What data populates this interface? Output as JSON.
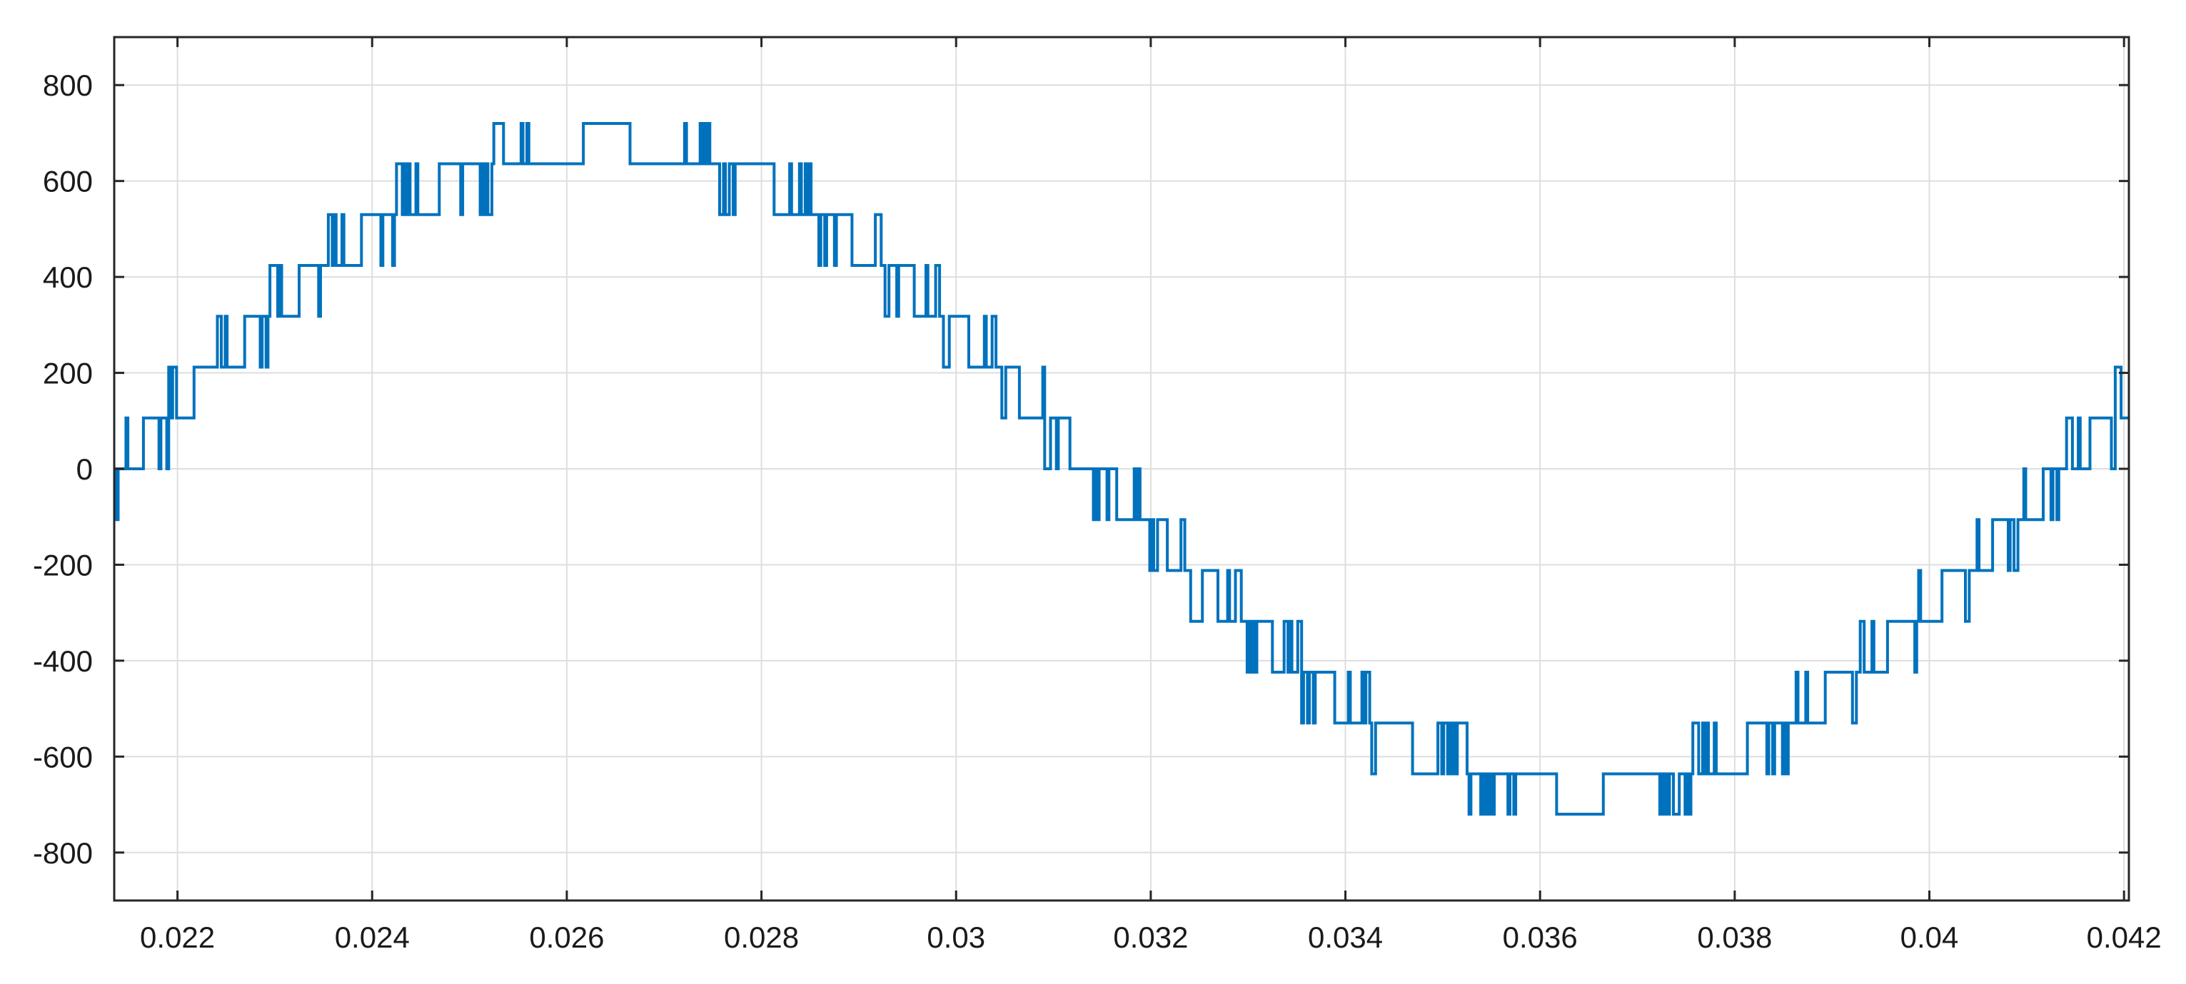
{
  "chart_data": {
    "type": "line",
    "title": "",
    "xlabel": "",
    "ylabel": "",
    "xlim": [
      0.02135,
      0.04205
    ],
    "ylim": [
      -900,
      900
    ],
    "grid": true,
    "x_ticks": [
      0.022,
      0.024,
      0.026,
      0.028,
      0.03,
      0.032,
      0.034,
      0.036,
      0.038,
      0.04,
      0.042
    ],
    "x_tick_labels": [
      "0.022",
      "0.024",
      "0.026",
      "0.028",
      "0.03",
      "0.032",
      "0.034",
      "0.036",
      "0.038",
      "0.04",
      "0.042"
    ],
    "y_ticks": [
      800,
      600,
      400,
      200,
      0,
      -200,
      -400,
      -600,
      -800
    ],
    "y_tick_labels": [
      "800",
      "600",
      "400",
      "200",
      "0",
      "-200",
      "-400",
      "-600",
      "-800"
    ],
    "series_color": "#0072bd",
    "series": [
      {
        "name": "",
        "description_of_shape": "multilevel stepped inverter output voltage approximating a 50 Hz sine wave, peak 720, levels spaced ~106",
        "fundamental": {
          "frequency_hz": 50,
          "amplitude": 680,
          "zero_crossing_rising_s": 0.0214
        },
        "step_levels": [
          -720,
          -636,
          -530,
          -424,
          -318,
          -212,
          -106,
          0,
          106,
          212,
          318,
          424,
          530,
          636,
          720
        ],
        "sample_points": [
          [
            0.0214,
            0
          ],
          [
            0.0218,
            0
          ],
          [
            0.022,
            106
          ],
          [
            0.0222,
            106
          ],
          [
            0.0224,
            106
          ],
          [
            0.0226,
            212
          ],
          [
            0.0228,
            212
          ],
          [
            0.023,
            318
          ],
          [
            0.0232,
            318
          ],
          [
            0.0234,
            318
          ],
          [
            0.0236,
            424
          ],
          [
            0.0238,
            424
          ],
          [
            0.024,
            424
          ],
          [
            0.0242,
            530
          ],
          [
            0.0244,
            530
          ],
          [
            0.0246,
            530
          ],
          [
            0.0248,
            530
          ],
          [
            0.025,
            636
          ],
          [
            0.0252,
            636
          ],
          [
            0.0256,
            636
          ],
          [
            0.026,
            636
          ],
          [
            0.0264,
            636
          ],
          [
            0.0268,
            636
          ],
          [
            0.0272,
            636
          ],
          [
            0.0276,
            636
          ],
          [
            0.028,
            636
          ],
          [
            0.0284,
            530
          ],
          [
            0.0288,
            530
          ],
          [
            0.0292,
            530
          ],
          [
            0.0294,
            424
          ],
          [
            0.0296,
            424
          ],
          [
            0.0298,
            424
          ],
          [
            0.03,
            318
          ],
          [
            0.0302,
            318
          ],
          [
            0.0304,
            212
          ],
          [
            0.0306,
            212
          ],
          [
            0.0308,
            212
          ],
          [
            0.031,
            106
          ],
          [
            0.0312,
            106
          ],
          [
            0.0314,
            0
          ],
          [
            0.0316,
            0
          ],
          [
            0.0318,
            -106
          ],
          [
            0.032,
            -106
          ],
          [
            0.0322,
            -212
          ],
          [
            0.0324,
            -212
          ],
          [
            0.0326,
            -212
          ],
          [
            0.0328,
            -318
          ],
          [
            0.033,
            -318
          ],
          [
            0.0332,
            -318
          ],
          [
            0.0334,
            -424
          ],
          [
            0.0336,
            -424
          ],
          [
            0.0338,
            -530
          ],
          [
            0.034,
            -530
          ],
          [
            0.0344,
            -530
          ],
          [
            0.0348,
            -530
          ],
          [
            0.0352,
            -636
          ],
          [
            0.0356,
            -636
          ],
          [
            0.036,
            -636
          ],
          [
            0.0364,
            -636
          ],
          [
            0.0368,
            -636
          ],
          [
            0.0372,
            -636
          ],
          [
            0.0376,
            -636
          ],
          [
            0.038,
            -636
          ],
          [
            0.0384,
            -530
          ],
          [
            0.0388,
            -530
          ],
          [
            0.0392,
            -530
          ],
          [
            0.0394,
            -424
          ],
          [
            0.0396,
            -424
          ],
          [
            0.0398,
            -424
          ],
          [
            0.04,
            -318
          ],
          [
            0.0402,
            -318
          ],
          [
            0.0404,
            -212
          ],
          [
            0.0406,
            -212
          ],
          [
            0.0408,
            -212
          ],
          [
            0.041,
            -106
          ],
          [
            0.0412,
            -106
          ],
          [
            0.0414,
            -106
          ],
          [
            0.0416,
            0
          ],
          [
            0.0418,
            0
          ],
          [
            0.042,
            106
          ]
        ]
      }
    ]
  }
}
